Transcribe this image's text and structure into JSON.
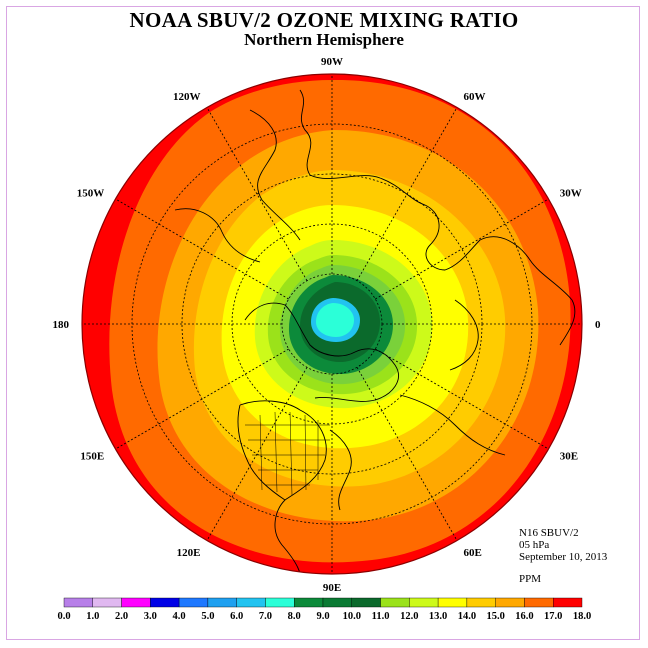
{
  "title": "NOAA SBUV/2 OZONE MIXING RATIO",
  "subtitle": "Northern Hemisphere",
  "info": {
    "satellite": "N16 SBUV/2",
    "pressure": "05 hPa",
    "date": "September 10, 2013",
    "units": "PPM"
  },
  "longitude_labels": [
    {
      "label": "90E",
      "lon": 90
    },
    {
      "label": "60E",
      "lon": 60
    },
    {
      "label": "30E",
      "lon": 30
    },
    {
      "label": "0",
      "lon": 0
    },
    {
      "label": "30W",
      "lon": -30
    },
    {
      "label": "60W",
      "lon": -60
    },
    {
      "label": "90W",
      "lon": -90
    },
    {
      "label": "120W",
      "lon": -120
    },
    {
      "label": "150W",
      "lon": -150
    },
    {
      "label": "180",
      "lon": 180
    },
    {
      "label": "150E",
      "lon": 150
    },
    {
      "label": "120E",
      "lon": 120
    }
  ],
  "colorbar": {
    "ticks": [
      "0.0",
      "1.0",
      "2.0",
      "3.0",
      "4.0",
      "5.0",
      "6.0",
      "7.0",
      "8.0",
      "9.0",
      "10.0",
      "11.0",
      "12.0",
      "13.0",
      "14.0",
      "15.0",
      "16.0",
      "17.0",
      "18.0"
    ],
    "colors": [
      "#b77fe8",
      "#e0b8f0",
      "#ff00ff",
      "#0000e6",
      "#1e78ff",
      "#1ea0f0",
      "#22c3f0",
      "#2bffd8",
      "#0c8a3a",
      "#0a7a33",
      "#0b6a2c",
      "#9be21a",
      "#cdfa1a",
      "#ffff00",
      "#ffcc00",
      "#ffa800",
      "#ff6a00",
      "#ff0000",
      "#8b5a3c"
    ]
  },
  "map_layers": [
    {
      "name": "band-16-17",
      "color": "#ff0000"
    },
    {
      "name": "band-15-16",
      "color": "#ff6a00"
    },
    {
      "name": "band-14-15",
      "color": "#ffa800"
    },
    {
      "name": "band-13-14",
      "color": "#ffcc00"
    },
    {
      "name": "band-12-13",
      "color": "#ffff00"
    },
    {
      "name": "band-11-12",
      "color": "#cdfa1a"
    },
    {
      "name": "band-10-11",
      "color": "#9be21a"
    },
    {
      "name": "band-9-10",
      "color": "#7ad13a"
    },
    {
      "name": "band-8-9",
      "color": "#0c8a3a"
    },
    {
      "name": "band-7-8",
      "color": "#0b6a2c"
    },
    {
      "name": "band-6-7",
      "color": "#22c3f0"
    },
    {
      "name": "band-core",
      "color": "#2bffd8"
    }
  ]
}
